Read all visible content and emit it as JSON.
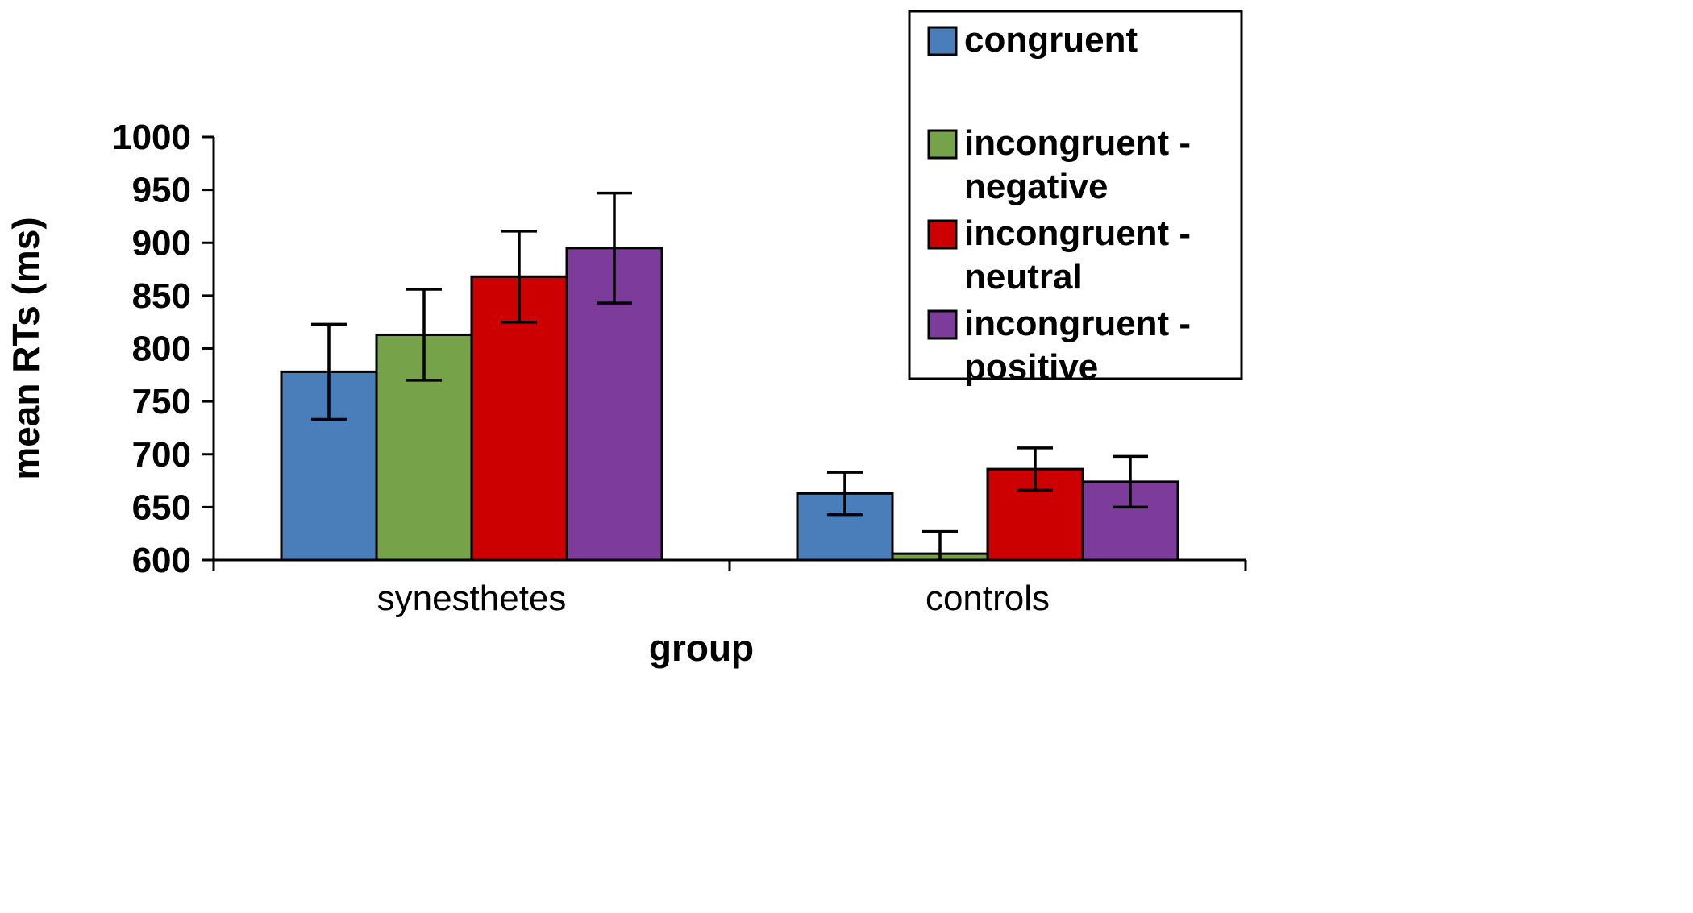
{
  "chart_data": {
    "type": "bar",
    "title": "",
    "xlabel": "group",
    "ylabel": "mean RTs (ms)",
    "ylim": [
      600,
      1000
    ],
    "ytick_step": 50,
    "grid": false,
    "legend_position": "top-right",
    "background": "#ffffff",
    "axis_color": "#000000",
    "bar_outline_color": "#000000",
    "categories": [
      "synesthetes",
      "controls"
    ],
    "series": [
      {
        "name": "congruent",
        "color": "#4A7EBB",
        "values": [
          778,
          663
        ],
        "errors": [
          45,
          20
        ]
      },
      {
        "name": "incongruent - negative",
        "color": "#76A24A",
        "values": [
          813,
          606
        ],
        "errors": [
          43,
          21
        ]
      },
      {
        "name": "incongruent - neutral",
        "color": "#CC0000",
        "values": [
          868,
          686
        ],
        "errors": [
          43,
          20
        ]
      },
      {
        "name": "incongruent - positive",
        "color": "#7D3C9C",
        "values": [
          895,
          674
        ],
        "errors": [
          52,
          24
        ]
      }
    ]
  }
}
